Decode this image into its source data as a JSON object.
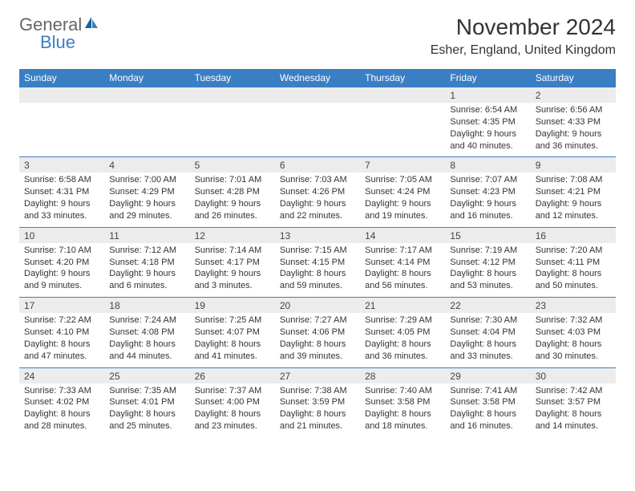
{
  "logo": {
    "text1": "General",
    "text2": "Blue"
  },
  "title": "November 2024",
  "location": "Esher, England, United Kingdom",
  "colors": {
    "header_bg": "#3a7fc4",
    "dayrow_bg": "#ececec",
    "border": "#3a7fc4",
    "text": "#333333",
    "logo_gray": "#666666",
    "logo_blue": "#3a7fc4",
    "background": "#ffffff"
  },
  "typography": {
    "title_fontsize": 28,
    "location_fontsize": 16,
    "header_fontsize": 12,
    "cell_fontsize": 11,
    "daynum_fontsize": 12
  },
  "columns": [
    "Sunday",
    "Monday",
    "Tuesday",
    "Wednesday",
    "Thursday",
    "Friday",
    "Saturday"
  ],
  "weeks": [
    [
      {
        "n": "",
        "sr": "",
        "ss": "",
        "dl1": "",
        "dl2": ""
      },
      {
        "n": "",
        "sr": "",
        "ss": "",
        "dl1": "",
        "dl2": ""
      },
      {
        "n": "",
        "sr": "",
        "ss": "",
        "dl1": "",
        "dl2": ""
      },
      {
        "n": "",
        "sr": "",
        "ss": "",
        "dl1": "",
        "dl2": ""
      },
      {
        "n": "",
        "sr": "",
        "ss": "",
        "dl1": "",
        "dl2": ""
      },
      {
        "n": "1",
        "sr": "Sunrise: 6:54 AM",
        "ss": "Sunset: 4:35 PM",
        "dl1": "Daylight: 9 hours",
        "dl2": "and 40 minutes."
      },
      {
        "n": "2",
        "sr": "Sunrise: 6:56 AM",
        "ss": "Sunset: 4:33 PM",
        "dl1": "Daylight: 9 hours",
        "dl2": "and 36 minutes."
      }
    ],
    [
      {
        "n": "3",
        "sr": "Sunrise: 6:58 AM",
        "ss": "Sunset: 4:31 PM",
        "dl1": "Daylight: 9 hours",
        "dl2": "and 33 minutes."
      },
      {
        "n": "4",
        "sr": "Sunrise: 7:00 AM",
        "ss": "Sunset: 4:29 PM",
        "dl1": "Daylight: 9 hours",
        "dl2": "and 29 minutes."
      },
      {
        "n": "5",
        "sr": "Sunrise: 7:01 AM",
        "ss": "Sunset: 4:28 PM",
        "dl1": "Daylight: 9 hours",
        "dl2": "and 26 minutes."
      },
      {
        "n": "6",
        "sr": "Sunrise: 7:03 AM",
        "ss": "Sunset: 4:26 PM",
        "dl1": "Daylight: 9 hours",
        "dl2": "and 22 minutes."
      },
      {
        "n": "7",
        "sr": "Sunrise: 7:05 AM",
        "ss": "Sunset: 4:24 PM",
        "dl1": "Daylight: 9 hours",
        "dl2": "and 19 minutes."
      },
      {
        "n": "8",
        "sr": "Sunrise: 7:07 AM",
        "ss": "Sunset: 4:23 PM",
        "dl1": "Daylight: 9 hours",
        "dl2": "and 16 minutes."
      },
      {
        "n": "9",
        "sr": "Sunrise: 7:08 AM",
        "ss": "Sunset: 4:21 PM",
        "dl1": "Daylight: 9 hours",
        "dl2": "and 12 minutes."
      }
    ],
    [
      {
        "n": "10",
        "sr": "Sunrise: 7:10 AM",
        "ss": "Sunset: 4:20 PM",
        "dl1": "Daylight: 9 hours",
        "dl2": "and 9 minutes."
      },
      {
        "n": "11",
        "sr": "Sunrise: 7:12 AM",
        "ss": "Sunset: 4:18 PM",
        "dl1": "Daylight: 9 hours",
        "dl2": "and 6 minutes."
      },
      {
        "n": "12",
        "sr": "Sunrise: 7:14 AM",
        "ss": "Sunset: 4:17 PM",
        "dl1": "Daylight: 9 hours",
        "dl2": "and 3 minutes."
      },
      {
        "n": "13",
        "sr": "Sunrise: 7:15 AM",
        "ss": "Sunset: 4:15 PM",
        "dl1": "Daylight: 8 hours",
        "dl2": "and 59 minutes."
      },
      {
        "n": "14",
        "sr": "Sunrise: 7:17 AM",
        "ss": "Sunset: 4:14 PM",
        "dl1": "Daylight: 8 hours",
        "dl2": "and 56 minutes."
      },
      {
        "n": "15",
        "sr": "Sunrise: 7:19 AM",
        "ss": "Sunset: 4:12 PM",
        "dl1": "Daylight: 8 hours",
        "dl2": "and 53 minutes."
      },
      {
        "n": "16",
        "sr": "Sunrise: 7:20 AM",
        "ss": "Sunset: 4:11 PM",
        "dl1": "Daylight: 8 hours",
        "dl2": "and 50 minutes."
      }
    ],
    [
      {
        "n": "17",
        "sr": "Sunrise: 7:22 AM",
        "ss": "Sunset: 4:10 PM",
        "dl1": "Daylight: 8 hours",
        "dl2": "and 47 minutes."
      },
      {
        "n": "18",
        "sr": "Sunrise: 7:24 AM",
        "ss": "Sunset: 4:08 PM",
        "dl1": "Daylight: 8 hours",
        "dl2": "and 44 minutes."
      },
      {
        "n": "19",
        "sr": "Sunrise: 7:25 AM",
        "ss": "Sunset: 4:07 PM",
        "dl1": "Daylight: 8 hours",
        "dl2": "and 41 minutes."
      },
      {
        "n": "20",
        "sr": "Sunrise: 7:27 AM",
        "ss": "Sunset: 4:06 PM",
        "dl1": "Daylight: 8 hours",
        "dl2": "and 39 minutes."
      },
      {
        "n": "21",
        "sr": "Sunrise: 7:29 AM",
        "ss": "Sunset: 4:05 PM",
        "dl1": "Daylight: 8 hours",
        "dl2": "and 36 minutes."
      },
      {
        "n": "22",
        "sr": "Sunrise: 7:30 AM",
        "ss": "Sunset: 4:04 PM",
        "dl1": "Daylight: 8 hours",
        "dl2": "and 33 minutes."
      },
      {
        "n": "23",
        "sr": "Sunrise: 7:32 AM",
        "ss": "Sunset: 4:03 PM",
        "dl1": "Daylight: 8 hours",
        "dl2": "and 30 minutes."
      }
    ],
    [
      {
        "n": "24",
        "sr": "Sunrise: 7:33 AM",
        "ss": "Sunset: 4:02 PM",
        "dl1": "Daylight: 8 hours",
        "dl2": "and 28 minutes."
      },
      {
        "n": "25",
        "sr": "Sunrise: 7:35 AM",
        "ss": "Sunset: 4:01 PM",
        "dl1": "Daylight: 8 hours",
        "dl2": "and 25 minutes."
      },
      {
        "n": "26",
        "sr": "Sunrise: 7:37 AM",
        "ss": "Sunset: 4:00 PM",
        "dl1": "Daylight: 8 hours",
        "dl2": "and 23 minutes."
      },
      {
        "n": "27",
        "sr": "Sunrise: 7:38 AM",
        "ss": "Sunset: 3:59 PM",
        "dl1": "Daylight: 8 hours",
        "dl2": "and 21 minutes."
      },
      {
        "n": "28",
        "sr": "Sunrise: 7:40 AM",
        "ss": "Sunset: 3:58 PM",
        "dl1": "Daylight: 8 hours",
        "dl2": "and 18 minutes."
      },
      {
        "n": "29",
        "sr": "Sunrise: 7:41 AM",
        "ss": "Sunset: 3:58 PM",
        "dl1": "Daylight: 8 hours",
        "dl2": "and 16 minutes."
      },
      {
        "n": "30",
        "sr": "Sunrise: 7:42 AM",
        "ss": "Sunset: 3:57 PM",
        "dl1": "Daylight: 8 hours",
        "dl2": "and 14 minutes."
      }
    ]
  ]
}
